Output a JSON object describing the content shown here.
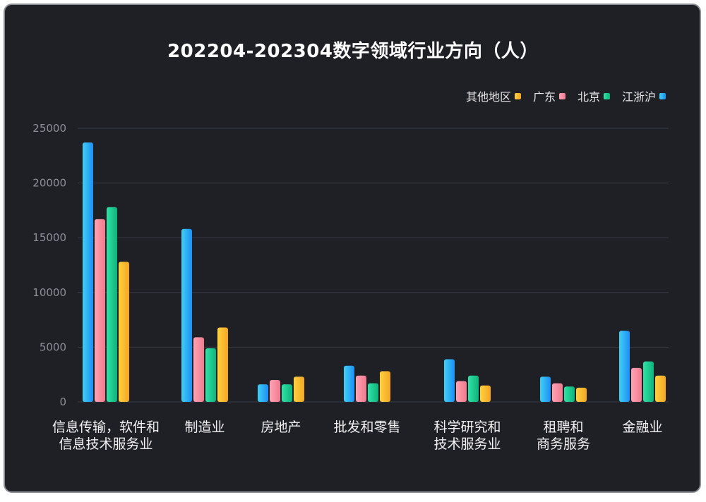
{
  "chart_data": {
    "type": "bar",
    "title": "202204-202304数字领域行业方向（人）",
    "categories": [
      [
        "信息传输，软件和",
        "信息技术服务业"
      ],
      [
        "制造业"
      ],
      [
        "房地产"
      ],
      [
        "批发和零售"
      ],
      [
        "科学研究和",
        "技术服务业"
      ],
      [
        "租聘和",
        "商务服务"
      ],
      [
        "金融业"
      ]
    ],
    "series": [
      {
        "name": "江浙沪",
        "values": [
          23700,
          15800,
          1600,
          3300,
          3900,
          2300,
          6500
        ],
        "color_top": "#3fd0f5",
        "color_bottom": "#1f8ff5"
      },
      {
        "name": "广东",
        "values": [
          16700,
          5900,
          2000,
          2400,
          1900,
          1700,
          3100
        ],
        "color_top": "#ffa3b3",
        "color_bottom": "#ef7a8f"
      },
      {
        "name": "北京",
        "values": [
          17800,
          4900,
          1600,
          1700,
          2400,
          1400,
          3700
        ],
        "color_top": "#2fe3a8",
        "color_bottom": "#10b27a"
      },
      {
        "name": "其他地区",
        "values": [
          12800,
          6800,
          2300,
          2800,
          1500,
          1300,
          2400
        ],
        "color_top": "#ffd23f",
        "color_bottom": "#f5a524"
      }
    ],
    "legend_order": [
      "其他地区",
      "广东",
      "北京",
      "江浙沪"
    ],
    "y_ticks": [
      0,
      5000,
      10000,
      15000,
      20000,
      25000
    ],
    "ylim": [
      0,
      25000
    ],
    "xlabel": "",
    "ylabel": "",
    "grid": true,
    "legend_position": "top-right"
  }
}
